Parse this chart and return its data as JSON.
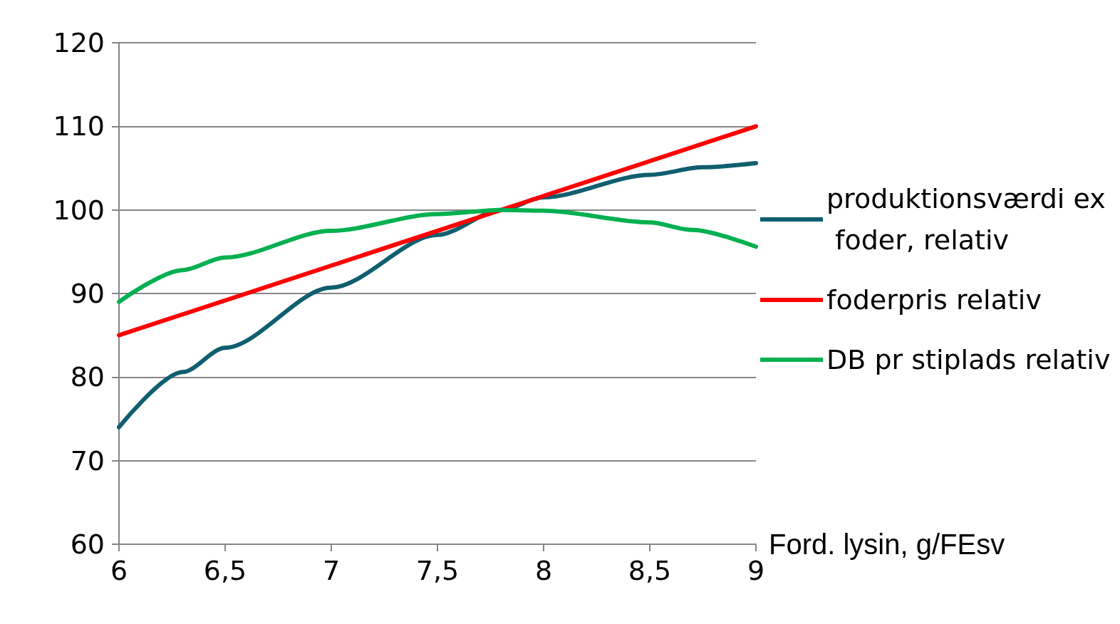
{
  "chart_data": {
    "type": "line",
    "xlabel": "Ford. lysin, g/FEsv",
    "xlim": [
      6,
      9
    ],
    "xticks": [
      6,
      {
        "value": 6.5,
        "label": "6,5"
      },
      7,
      {
        "value": 7.5,
        "label": "7,5"
      },
      8,
      {
        "value": 8.5,
        "label": "8,5"
      },
      9
    ],
    "ylim": [
      60,
      120
    ],
    "yticks": [
      60,
      70,
      80,
      90,
      100,
      110,
      120
    ],
    "grid": "y",
    "legend": "right",
    "marker": "none",
    "line_style": "solid",
    "series": [
      {
        "name": "produktionsværdi ex foder, relativ",
        "color": "#0f5f6f",
        "x": [
          6,
          6.3,
          6.5,
          7,
          7.5,
          7.8,
          8,
          8.5,
          8.75,
          9
        ],
        "values": [
          74,
          80.6,
          83.5,
          90.7,
          97,
          100,
          101.5,
          104.2,
          105.1,
          105.6
        ]
      },
      {
        "name": "foderpris relativ",
        "color": "#ff0000",
        "x": [
          6,
          9
        ],
        "values": [
          85,
          110
        ]
      },
      {
        "name": "DB pr stiplads relativ",
        "color": "#00b050",
        "x": [
          6,
          6.3,
          6.5,
          7,
          7.5,
          7.8,
          8,
          8.5,
          8.7,
          9
        ],
        "values": [
          89,
          92.8,
          94.3,
          97.5,
          99.5,
          100,
          99.9,
          98.5,
          97.6,
          95.6
        ]
      }
    ]
  }
}
